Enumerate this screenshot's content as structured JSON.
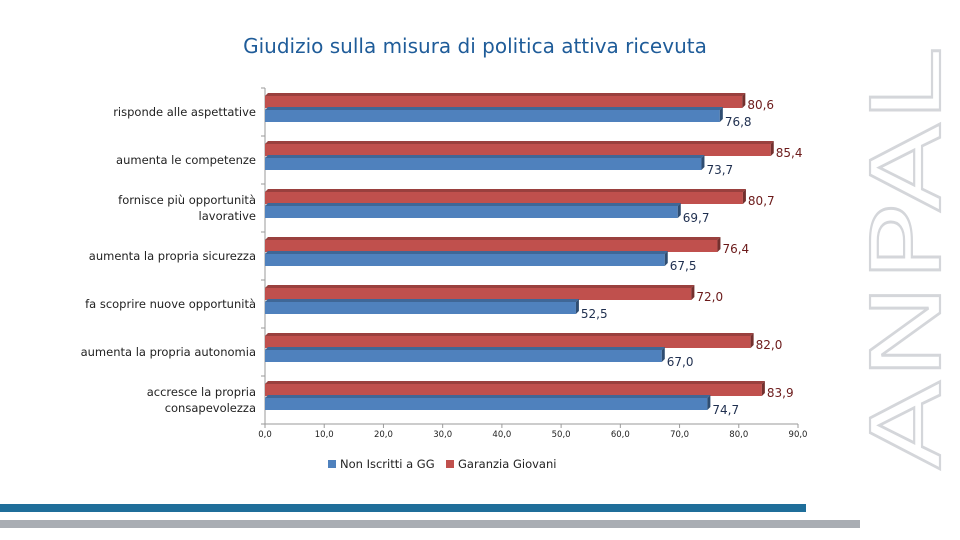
{
  "chart_data": {
    "type": "bar",
    "orientation": "horizontal",
    "title": "Giudizio sulla misura di politica attiva ricevuta",
    "categories": [
      [
        "risponde alle aspettative"
      ],
      [
        "aumenta le competenze"
      ],
      [
        "fornisce più opportunità",
        "lavorative"
      ],
      [
        "aumenta la propria sicurezza"
      ],
      [
        "fa scoprire nuove opportunità"
      ],
      [
        "aumenta la propria autonomia"
      ],
      [
        "accresce la propria",
        "consapevolezza"
      ]
    ],
    "series": [
      {
        "name": "Garanzia Giovani",
        "color": "#c0504d",
        "values": [
          80.6,
          85.4,
          80.7,
          76.4,
          72.0,
          82.0,
          83.9
        ],
        "labels": [
          "80,6",
          "85,4",
          "80,7",
          "76,4",
          "72,0",
          "82,0",
          "83,9"
        ]
      },
      {
        "name": "Non Iscritti a GG",
        "color": "#4f81bd",
        "values": [
          76.8,
          73.7,
          69.7,
          67.5,
          52.5,
          67.0,
          74.7
        ],
        "labels": [
          "76,8",
          "73,7",
          "69,7",
          "67,5",
          "52,5",
          "67,0",
          "74,7"
        ]
      }
    ],
    "xlim": [
      0,
      90
    ],
    "xticks": [
      "0,0",
      "10,0",
      "20,0",
      "30,0",
      "40,0",
      "50,0",
      "60,0",
      "70,0",
      "80,0",
      "90,0"
    ],
    "legend": [
      "Non Iscritti a GG",
      "Garanzia Giovani"
    ],
    "legend_position": "bottom"
  },
  "brand": {
    "logo_text": "ANPAL",
    "logo_color": "#d4d6da"
  }
}
